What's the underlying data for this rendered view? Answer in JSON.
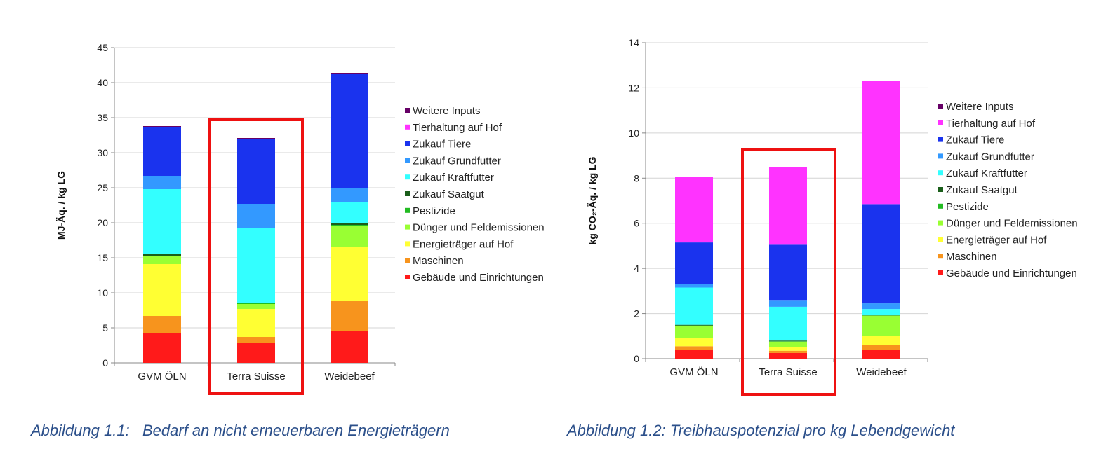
{
  "chart_data": [
    {
      "type": "bar",
      "stacked": true,
      "categories": [
        "GVM ÖLN",
        "Terra Suisse",
        "Weidebeef"
      ],
      "ylabel": "MJ-Äq. / kg LG",
      "ylim": [
        0,
        45
      ],
      "yticks": [
        0,
        5,
        10,
        15,
        20,
        25,
        30,
        35,
        40,
        45
      ],
      "grid": true,
      "legend_position": "right",
      "highlighted_category": "Terra Suisse",
      "series": [
        {
          "name": "Gebäude und Einrichtungen",
          "color": "#ff1a1a",
          "values": [
            4.3,
            2.8,
            4.6
          ]
        },
        {
          "name": "Maschinen",
          "color": "#f7941d",
          "values": [
            2.4,
            0.9,
            4.3
          ]
        },
        {
          "name": "Energieträger auf Hof",
          "color": "#ffff33",
          "values": [
            7.4,
            4.0,
            7.7
          ]
        },
        {
          "name": "Dünger und Feldemissionen",
          "color": "#99ff33",
          "values": [
            1.1,
            0.7,
            3.0
          ]
        },
        {
          "name": "Pestizide",
          "color": "#22bb22",
          "values": [
            0.1,
            0.1,
            0.1
          ]
        },
        {
          "name": "Zukauf Saatgut",
          "color": "#1a5e1a",
          "values": [
            0.2,
            0.1,
            0.2
          ]
        },
        {
          "name": "Zukauf Kraftfutter",
          "color": "#33ffff",
          "values": [
            9.3,
            10.7,
            3.0
          ]
        },
        {
          "name": "Zukauf Grundfutter",
          "color": "#3399ff",
          "values": [
            1.9,
            3.4,
            2.0
          ]
        },
        {
          "name": "Zukauf Tiere",
          "color": "#1a33ee",
          "values": [
            6.9,
            9.2,
            16.3
          ]
        },
        {
          "name": "Tierhaltung auf Hof",
          "color": "#ff33ff",
          "values": [
            0.0,
            0.0,
            0.0
          ]
        },
        {
          "name": "Weitere Inputs",
          "color": "#660066",
          "values": [
            0.2,
            0.2,
            0.2
          ]
        }
      ]
    },
    {
      "type": "bar",
      "stacked": true,
      "categories": [
        "GVM ÖLN",
        "Terra Suisse",
        "Weidebeef"
      ],
      "ylabel": "kg CO₂-Äq. / kg LG",
      "ylim": [
        0,
        14
      ],
      "yticks": [
        0,
        2,
        4,
        6,
        8,
        10,
        12,
        14
      ],
      "grid": true,
      "legend_position": "right",
      "highlighted_category": "Terra Suisse",
      "series": [
        {
          "name": "Gebäude und Einrichtungen",
          "color": "#ff1a1a",
          "values": [
            0.4,
            0.25,
            0.4
          ]
        },
        {
          "name": "Maschinen",
          "color": "#f7941d",
          "values": [
            0.15,
            0.1,
            0.2
          ]
        },
        {
          "name": "Energieträger auf Hof",
          "color": "#ffff33",
          "values": [
            0.35,
            0.15,
            0.4
          ]
        },
        {
          "name": "Dünger und Feldemissionen",
          "color": "#99ff33",
          "values": [
            0.55,
            0.25,
            0.9
          ]
        },
        {
          "name": "Pestizide",
          "color": "#22bb22",
          "values": [
            0.02,
            0.02,
            0.02
          ]
        },
        {
          "name": "Zukauf Saatgut",
          "color": "#1a5e1a",
          "values": [
            0.03,
            0.03,
            0.03
          ]
        },
        {
          "name": "Zukauf Kraftfutter",
          "color": "#33ffff",
          "values": [
            1.65,
            1.5,
            0.25
          ]
        },
        {
          "name": "Zukauf Grundfutter",
          "color": "#3399ff",
          "values": [
            0.15,
            0.3,
            0.25
          ]
        },
        {
          "name": "Zukauf Tiere",
          "color": "#1a33ee",
          "values": [
            1.85,
            2.45,
            4.4
          ]
        },
        {
          "name": "Tierhaltung auf Hof",
          "color": "#ff33ff",
          "values": [
            2.9,
            3.45,
            5.45
          ]
        },
        {
          "name": "Weitere Inputs",
          "color": "#660066",
          "values": [
            0.0,
            0.0,
            0.0
          ]
        }
      ]
    }
  ],
  "captions": [
    "Abbildung 1.1:   Bedarf an nicht erneuerbaren Energieträgern",
    "Abbildung 1.2: Treibhauspotenzial pro kg Lebendgewicht"
  ],
  "highlight_color": "#ee1111"
}
